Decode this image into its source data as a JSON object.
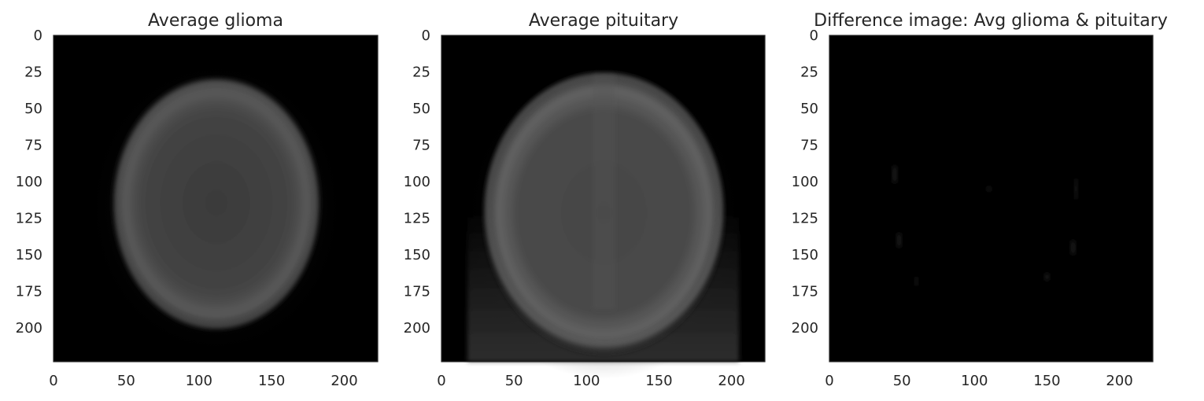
{
  "chart_data": [
    {
      "type": "heatmap",
      "title": "Average glioma",
      "image_kind": "glioma",
      "xlim": [
        0,
        223
      ],
      "ylim": [
        223,
        0
      ],
      "xticks": [
        0,
        50,
        100,
        150,
        200
      ],
      "yticks": [
        0,
        25,
        50,
        75,
        100,
        125,
        150,
        175,
        200
      ],
      "colormap": "gray",
      "grid": false
    },
    {
      "type": "heatmap",
      "title": "Average pituitary",
      "image_kind": "pituitary",
      "xlim": [
        0,
        223
      ],
      "ylim": [
        223,
        0
      ],
      "xticks": [
        0,
        50,
        100,
        150,
        200
      ],
      "yticks": [
        0,
        25,
        50,
        75,
        100,
        125,
        150,
        175,
        200
      ],
      "colormap": "gray",
      "grid": false
    },
    {
      "type": "heatmap",
      "title": "Difference image: Avg glioma & pituitary",
      "image_kind": "difference",
      "xlim": [
        0,
        223
      ],
      "ylim": [
        223,
        0
      ],
      "xticks": [
        0,
        50,
        100,
        150,
        200
      ],
      "yticks": [
        0,
        25,
        50,
        75,
        100,
        125,
        150,
        175,
        200
      ],
      "colormap": "gray",
      "grid": false
    }
  ]
}
